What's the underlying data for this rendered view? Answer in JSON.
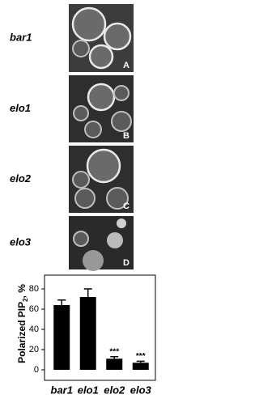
{
  "panels": [
    {
      "label": "bar1",
      "letter": "A"
    },
    {
      "label": "elo1",
      "letter": "B"
    },
    {
      "label": "elo2",
      "letter": "C"
    },
    {
      "label": "elo3",
      "letter": "D"
    }
  ],
  "chart_data": {
    "type": "bar",
    "y_label": {
      "text": "Polarized PIP",
      "subscript": "2",
      "suffix": ", %"
    },
    "categories": [
      "bar1",
      "elo1",
      "elo2",
      "elo3"
    ],
    "values": [
      64,
      72,
      11,
      7
    ],
    "errors": [
      5,
      8,
      2,
      1.5
    ],
    "color": "#000000",
    "significance": [
      null,
      null,
      "***",
      "***"
    ],
    "ylim": [
      0,
      90
    ],
    "yticks": [
      0,
      20,
      40,
      60,
      80
    ]
  }
}
